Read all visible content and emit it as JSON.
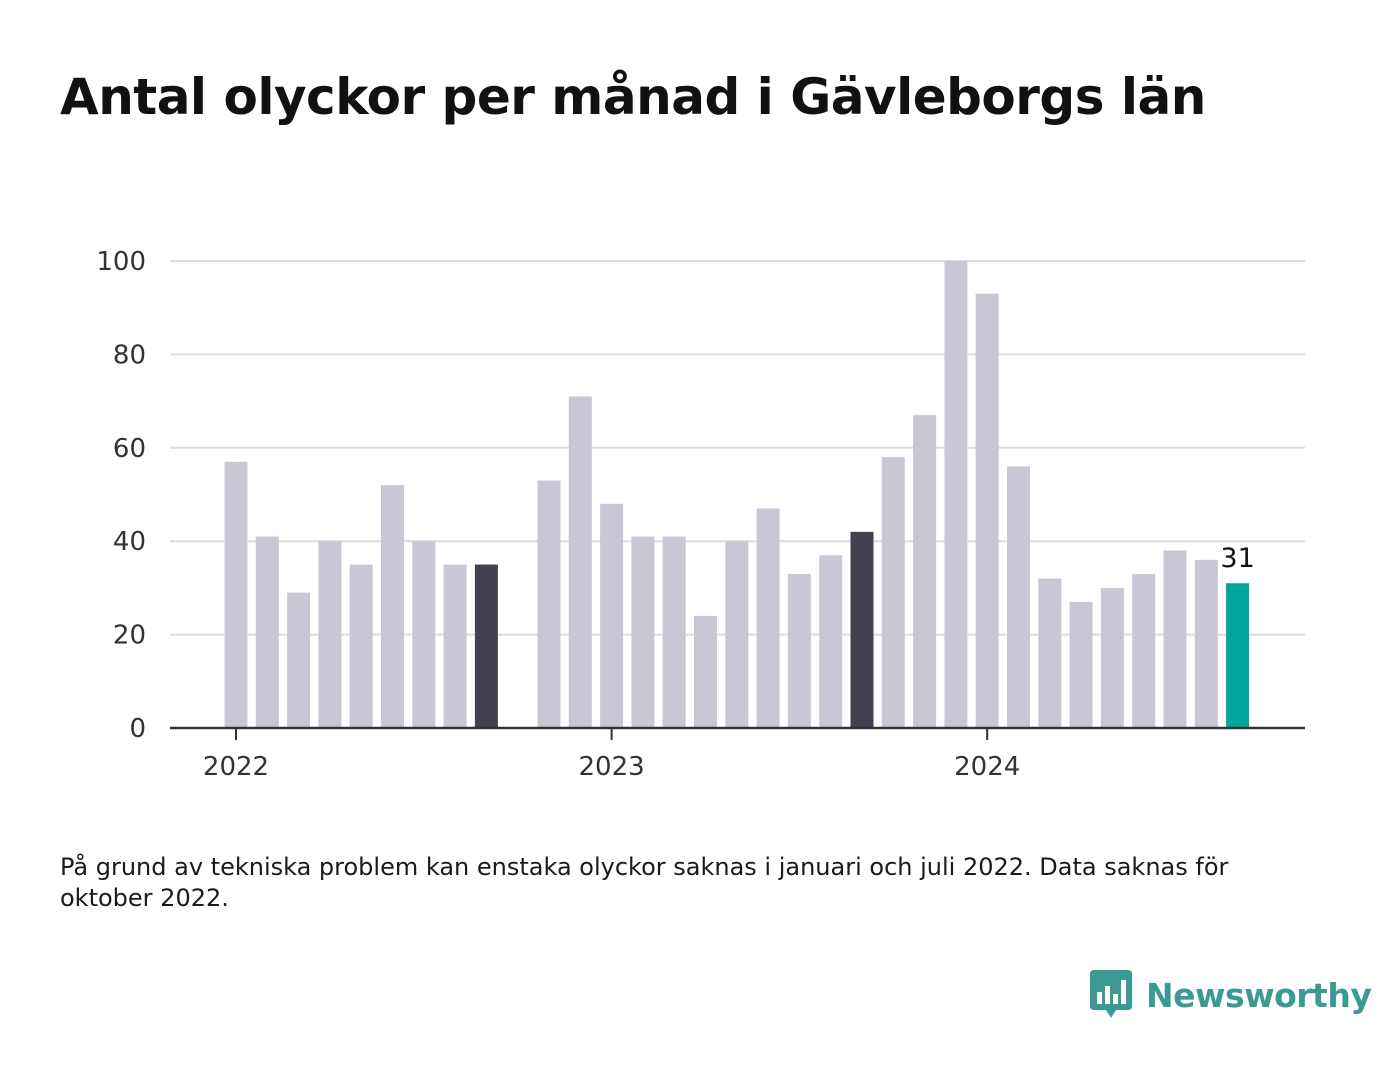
{
  "title": "Antal olyckor per månad i Gävleborgs län",
  "footnote": "På grund av tekniska problem kan enstaka olyckor saknas i januari och juli 2022. Data saknas för oktober 2022.",
  "logo": {
    "text": "Newsworthy",
    "icon": "newsworthy-bar-icon",
    "color": "#3b9a94"
  },
  "chart_data": {
    "type": "bar",
    "title": "Antal olyckor per månad i Gävleborgs län",
    "xlabel": "",
    "ylabel": "",
    "ylim": [
      0,
      100
    ],
    "y_ticks": [
      0,
      20,
      40,
      60,
      80,
      100
    ],
    "x_ticks": [
      {
        "label": "2022",
        "at": "2022-01"
      },
      {
        "label": "2023",
        "at": "2023-01"
      },
      {
        "label": "2024",
        "at": "2024-01"
      }
    ],
    "grid": true,
    "legend": "none",
    "colors": {
      "default": "#c8c7d3",
      "september": "#43414f",
      "latest": "#00a69b"
    },
    "data_label": {
      "month": "2024-09",
      "text": "31"
    },
    "bars": [
      {
        "month": "2022-01",
        "value": 57,
        "highlight": "default"
      },
      {
        "month": "2022-02",
        "value": 41,
        "highlight": "default"
      },
      {
        "month": "2022-03",
        "value": 29,
        "highlight": "default"
      },
      {
        "month": "2022-04",
        "value": 40,
        "highlight": "default"
      },
      {
        "month": "2022-05",
        "value": 35,
        "highlight": "default"
      },
      {
        "month": "2022-06",
        "value": 52,
        "highlight": "default"
      },
      {
        "month": "2022-07",
        "value": 40,
        "highlight": "default"
      },
      {
        "month": "2022-08",
        "value": 35,
        "highlight": "default"
      },
      {
        "month": "2022-09",
        "value": 35,
        "highlight": "september"
      },
      {
        "month": "2022-10",
        "value": null,
        "highlight": "default"
      },
      {
        "month": "2022-11",
        "value": 53,
        "highlight": "default"
      },
      {
        "month": "2022-12",
        "value": 71,
        "highlight": "default"
      },
      {
        "month": "2023-01",
        "value": 48,
        "highlight": "default"
      },
      {
        "month": "2023-02",
        "value": 41,
        "highlight": "default"
      },
      {
        "month": "2023-03",
        "value": 41,
        "highlight": "default"
      },
      {
        "month": "2023-04",
        "value": 24,
        "highlight": "default"
      },
      {
        "month": "2023-05",
        "value": 40,
        "highlight": "default"
      },
      {
        "month": "2023-06",
        "value": 47,
        "highlight": "default"
      },
      {
        "month": "2023-07",
        "value": 33,
        "highlight": "default"
      },
      {
        "month": "2023-08",
        "value": 37,
        "highlight": "default"
      },
      {
        "month": "2023-09",
        "value": 42,
        "highlight": "september"
      },
      {
        "month": "2023-10",
        "value": 58,
        "highlight": "default"
      },
      {
        "month": "2023-11",
        "value": 67,
        "highlight": "default"
      },
      {
        "month": "2023-12",
        "value": 100,
        "highlight": "default"
      },
      {
        "month": "2024-01",
        "value": 93,
        "highlight": "default"
      },
      {
        "month": "2024-02",
        "value": 56,
        "highlight": "default"
      },
      {
        "month": "2024-03",
        "value": 32,
        "highlight": "default"
      },
      {
        "month": "2024-04",
        "value": 27,
        "highlight": "default"
      },
      {
        "month": "2024-05",
        "value": 30,
        "highlight": "default"
      },
      {
        "month": "2024-06",
        "value": 33,
        "highlight": "default"
      },
      {
        "month": "2024-07",
        "value": 38,
        "highlight": "default"
      },
      {
        "month": "2024-08",
        "value": 36,
        "highlight": "default"
      },
      {
        "month": "2024-09",
        "value": 31,
        "highlight": "latest"
      }
    ]
  }
}
